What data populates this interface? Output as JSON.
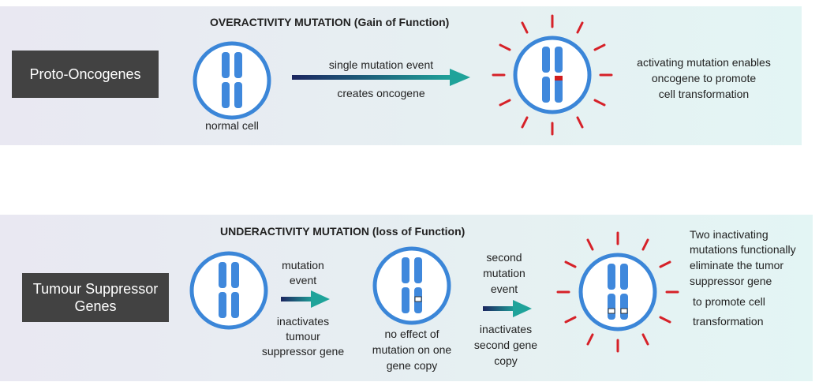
{
  "colors": {
    "panel_bg": "#e8eef2",
    "label_bg": "#424242",
    "cell_ring": "#3b86d8",
    "chromosome": "#3f88dc",
    "mutation_red": "#d01c1c",
    "burst_red": "#d62128",
    "arrow_start": "#1c2660",
    "arrow_end": "#1fa39a"
  },
  "top": {
    "label": "Proto-Oncogenes",
    "heading": "OVERACTIVITY MUTATION (Gain of Function)",
    "normal_cell_caption": "normal cell",
    "arrow_label_above": "single mutation event",
    "arrow_label_below": "creates oncogene",
    "result_lines": [
      "activating mutation enables",
      "oncogene to promote",
      "cell transformation"
    ]
  },
  "bottom": {
    "label_lines": [
      "Tumour Suppressor",
      "Genes"
    ],
    "heading": "UNDERACTIVITY MUTATION (loss of Function)",
    "arrow1_above_lines": [
      "mutation",
      "event"
    ],
    "arrow1_below_lines": [
      "inactivates",
      "tumour",
      "suppressor gene"
    ],
    "middle_caption_lines": [
      "no effect of",
      "mutation on one",
      "gene copy"
    ],
    "arrow2_above_lines": [
      "second",
      "mutation",
      "event"
    ],
    "arrow2_below_lines": [
      "inactivates",
      "second gene",
      "copy"
    ],
    "result_lines": [
      "Two inactivating",
      "mutations functionally",
      "eliminate the tumor",
      "suppressor gene",
      "to promote cell",
      "transformation"
    ]
  }
}
